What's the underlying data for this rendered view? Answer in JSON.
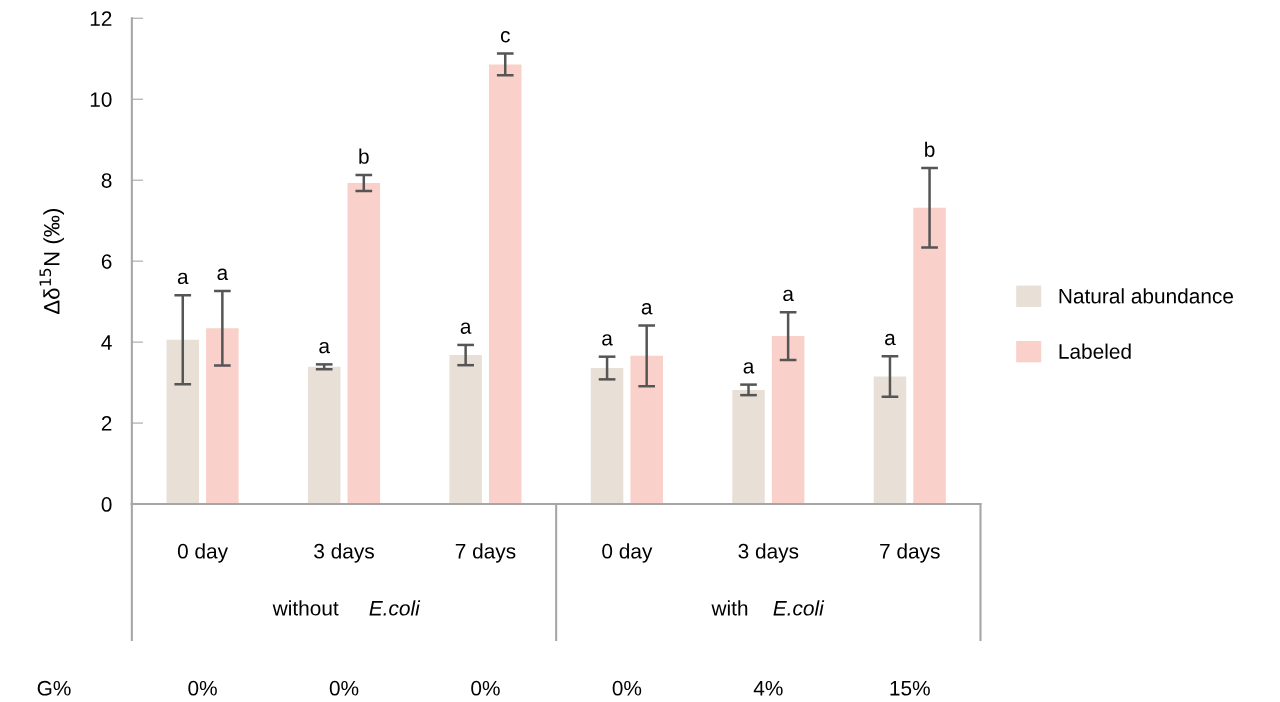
{
  "chart_data": {
    "type": "bar",
    "ylabel": "Δδ$^{15}$N (‰)",
    "categories": [
      "0 day",
      "3 days",
      "7 days",
      "0 day",
      "3 days",
      "7 days"
    ],
    "series": [
      {
        "name": "Natural abundance",
        "color": "#e8e0d6",
        "values": [
          4.06,
          3.39,
          3.68,
          3.36,
          2.82,
          3.15
        ],
        "errors": [
          1.1,
          0.06,
          0.25,
          0.28,
          0.13,
          0.5
        ],
        "value_labels": [
          "a",
          "a",
          "a",
          "a",
          "a",
          "a"
        ]
      },
      {
        "name": "Labeled",
        "color": "#f9d0ca",
        "values": [
          4.34,
          7.93,
          10.86,
          3.66,
          4.15,
          7.32
        ],
        "errors": [
          0.92,
          0.2,
          0.27,
          0.75,
          0.59,
          0.98
        ],
        "value_labels": [
          "a",
          "b",
          "c",
          "a",
          "a",
          "b"
        ]
      }
    ],
    "ylim": [
      0,
      12
    ],
    "yticks": [
      0,
      2,
      4,
      6,
      8,
      10,
      12
    ],
    "grid": false,
    "legend": "right",
    "annotations": [
      "without E.coli",
      "with E.coli",
      "G%",
      "0%",
      "0%",
      "0%",
      "0%",
      "4%",
      "15%"
    ]
  }
}
